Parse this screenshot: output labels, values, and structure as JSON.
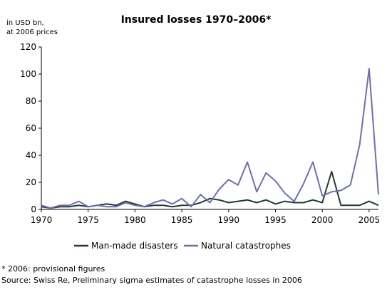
{
  "chart_data": {
    "type": "line",
    "title": "Insured losses 1970–2006*",
    "unit_note": [
      "in USD bn,",
      "at 2006 prices"
    ],
    "ylim": [
      0,
      120
    ],
    "yticks": [
      0,
      20,
      40,
      60,
      80,
      100,
      120
    ],
    "xlim": [
      1970,
      2006
    ],
    "xticks": [
      1970,
      1975,
      1980,
      1985,
      1990,
      1995,
      2000,
      2005
    ],
    "grid": false,
    "legend_position": "bottom",
    "x": [
      1970,
      1971,
      1972,
      1973,
      1974,
      1975,
      1976,
      1977,
      1978,
      1979,
      1980,
      1981,
      1982,
      1983,
      1984,
      1985,
      1986,
      1987,
      1988,
      1989,
      1990,
      1991,
      1992,
      1993,
      1994,
      1995,
      1996,
      1997,
      1998,
      1999,
      2000,
      2001,
      2002,
      2003,
      2004,
      2005,
      2006
    ],
    "series": [
      {
        "name": "Man-made disasters",
        "color": "#1f3d2e",
        "values": [
          2,
          1,
          2,
          2,
          3,
          2,
          3,
          4,
          3,
          6,
          4,
          2,
          3,
          3,
          2,
          3,
          3,
          5,
          8,
          7,
          5,
          6,
          7,
          5,
          7,
          4,
          6,
          5,
          5,
          7,
          5,
          28,
          3,
          3,
          3,
          6,
          3
        ]
      },
      {
        "name": "Natural catastrophes",
        "color": "#6e6eb8",
        "values": [
          3,
          1,
          3,
          3,
          6,
          2,
          3,
          2,
          2,
          5,
          3,
          2,
          5,
          7,
          4,
          8,
          2,
          11,
          5,
          15,
          22,
          18,
          35,
          13,
          27,
          21,
          12,
          6,
          19,
          35,
          10,
          13,
          14,
          18,
          48,
          104,
          11
        ]
      }
    ]
  },
  "footnote": "* 2006: provisional figures",
  "source": "Source: Swiss Re, Preliminary sigma estimates of catastrophe losses in 2006"
}
